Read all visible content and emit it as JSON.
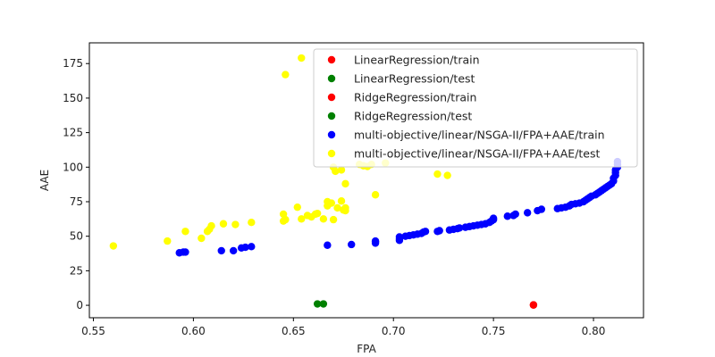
{
  "chart_data": {
    "type": "scatter",
    "title": "",
    "xlabel": "FPA",
    "ylabel": "AAE",
    "xlim": [
      0.548,
      0.825
    ],
    "ylim": [
      -9,
      190
    ],
    "xticks": [
      0.55,
      0.6,
      0.65,
      0.7,
      0.75,
      0.8
    ],
    "xtick_labels": [
      "0.55",
      "0.60",
      "0.65",
      "0.70",
      "0.75",
      "0.80"
    ],
    "yticks": [
      0,
      25,
      50,
      75,
      100,
      125,
      150,
      175
    ],
    "ytick_labels": [
      "0",
      "25",
      "50",
      "75",
      "100",
      "125",
      "150",
      "175"
    ],
    "grid": false,
    "legend_position": "top-right",
    "series": [
      {
        "name": "LinearRegression/train",
        "color": "#ff0000",
        "points": [
          [
            0.77,
            0.3
          ]
        ]
      },
      {
        "name": "LinearRegression/test",
        "color": "#008000",
        "points": [
          [
            0.662,
            1.0
          ]
        ]
      },
      {
        "name": "RidgeRegression/train",
        "color": "#ff0000",
        "points": [
          [
            0.77,
            0.2
          ]
        ]
      },
      {
        "name": "RidgeRegression/test",
        "color": "#008000",
        "points": [
          [
            0.665,
            1.0
          ]
        ]
      },
      {
        "name": "multi-objective/linear/NSGA-II/FPA+AAE/train",
        "color": "#0000ff",
        "points": [
          [
            0.593,
            38
          ],
          [
            0.595,
            38.5
          ],
          [
            0.596,
            38.5
          ],
          [
            0.614,
            39.5
          ],
          [
            0.62,
            39.5
          ],
          [
            0.624,
            41.5
          ],
          [
            0.626,
            42
          ],
          [
            0.629,
            42.5
          ],
          [
            0.667,
            43.5
          ],
          [
            0.679,
            44
          ],
          [
            0.691,
            45
          ],
          [
            0.691,
            46
          ],
          [
            0.691,
            46.5
          ],
          [
            0.703,
            47
          ],
          [
            0.703,
            48
          ],
          [
            0.703,
            49.5
          ],
          [
            0.706,
            50
          ],
          [
            0.708,
            50.5
          ],
          [
            0.71,
            51
          ],
          [
            0.712,
            51.5
          ],
          [
            0.714,
            52
          ],
          [
            0.715,
            53
          ],
          [
            0.716,
            53.5
          ],
          [
            0.722,
            53.5
          ],
          [
            0.723,
            54
          ],
          [
            0.728,
            54.5
          ],
          [
            0.73,
            55
          ],
          [
            0.732,
            55.5
          ],
          [
            0.733,
            56
          ],
          [
            0.736,
            56.5
          ],
          [
            0.738,
            57
          ],
          [
            0.74,
            57.5
          ],
          [
            0.742,
            58
          ],
          [
            0.744,
            58.5
          ],
          [
            0.746,
            59
          ],
          [
            0.748,
            60
          ],
          [
            0.749,
            61
          ],
          [
            0.75,
            62
          ],
          [
            0.75,
            63
          ],
          [
            0.757,
            64.5
          ],
          [
            0.76,
            65
          ],
          [
            0.761,
            66
          ],
          [
            0.767,
            67
          ],
          [
            0.772,
            68.5
          ],
          [
            0.774,
            69.5
          ],
          [
            0.782,
            70
          ],
          [
            0.784,
            70.5
          ],
          [
            0.786,
            71
          ],
          [
            0.788,
            72
          ],
          [
            0.789,
            73
          ],
          [
            0.791,
            73.5
          ],
          [
            0.793,
            74
          ],
          [
            0.795,
            75
          ],
          [
            0.796,
            76
          ],
          [
            0.797,
            77
          ],
          [
            0.798,
            78
          ],
          [
            0.799,
            79
          ],
          [
            0.801,
            80
          ],
          [
            0.802,
            81
          ],
          [
            0.803,
            82
          ],
          [
            0.804,
            83
          ],
          [
            0.805,
            84
          ],
          [
            0.806,
            85
          ],
          [
            0.807,
            86
          ],
          [
            0.808,
            87
          ],
          [
            0.809,
            88
          ],
          [
            0.81,
            90
          ],
          [
            0.81,
            92
          ],
          [
            0.811,
            94
          ],
          [
            0.811,
            96
          ],
          [
            0.811,
            98
          ],
          [
            0.812,
            100
          ],
          [
            0.812,
            102
          ],
          [
            0.812,
            104
          ]
        ]
      },
      {
        "name": "multi-objective/linear/NSGA-II/FPA+AAE/test",
        "color": "#ffff00",
        "points": [
          [
            0.56,
            43
          ],
          [
            0.587,
            46.5
          ],
          [
            0.596,
            53.5
          ],
          [
            0.604,
            48.5
          ],
          [
            0.607,
            53.5
          ],
          [
            0.608,
            55
          ],
          [
            0.609,
            57.5
          ],
          [
            0.615,
            59
          ],
          [
            0.621,
            58.5
          ],
          [
            0.629,
            60
          ],
          [
            0.645,
            61
          ],
          [
            0.646,
            62
          ],
          [
            0.645,
            66
          ],
          [
            0.646,
            167
          ],
          [
            0.652,
            71
          ],
          [
            0.654,
            62.5
          ],
          [
            0.654,
            179
          ],
          [
            0.657,
            65
          ],
          [
            0.659,
            64
          ],
          [
            0.661,
            66
          ],
          [
            0.662,
            66.5
          ],
          [
            0.665,
            62.5
          ],
          [
            0.667,
            72
          ],
          [
            0.667,
            75
          ],
          [
            0.669,
            74
          ],
          [
            0.67,
            62
          ],
          [
            0.67,
            100
          ],
          [
            0.671,
            97
          ],
          [
            0.672,
            70.5
          ],
          [
            0.674,
            98
          ],
          [
            0.674,
            75.5
          ],
          [
            0.675,
            69
          ],
          [
            0.676,
            70.5
          ],
          [
            0.676,
            88
          ],
          [
            0.676,
            68.5
          ],
          [
            0.683,
            102
          ],
          [
            0.685,
            101
          ],
          [
            0.687,
            100.5
          ],
          [
            0.689,
            102
          ],
          [
            0.691,
            80
          ],
          [
            0.696,
            103
          ],
          [
            0.722,
            95
          ],
          [
            0.727,
            94
          ]
        ]
      }
    ]
  }
}
